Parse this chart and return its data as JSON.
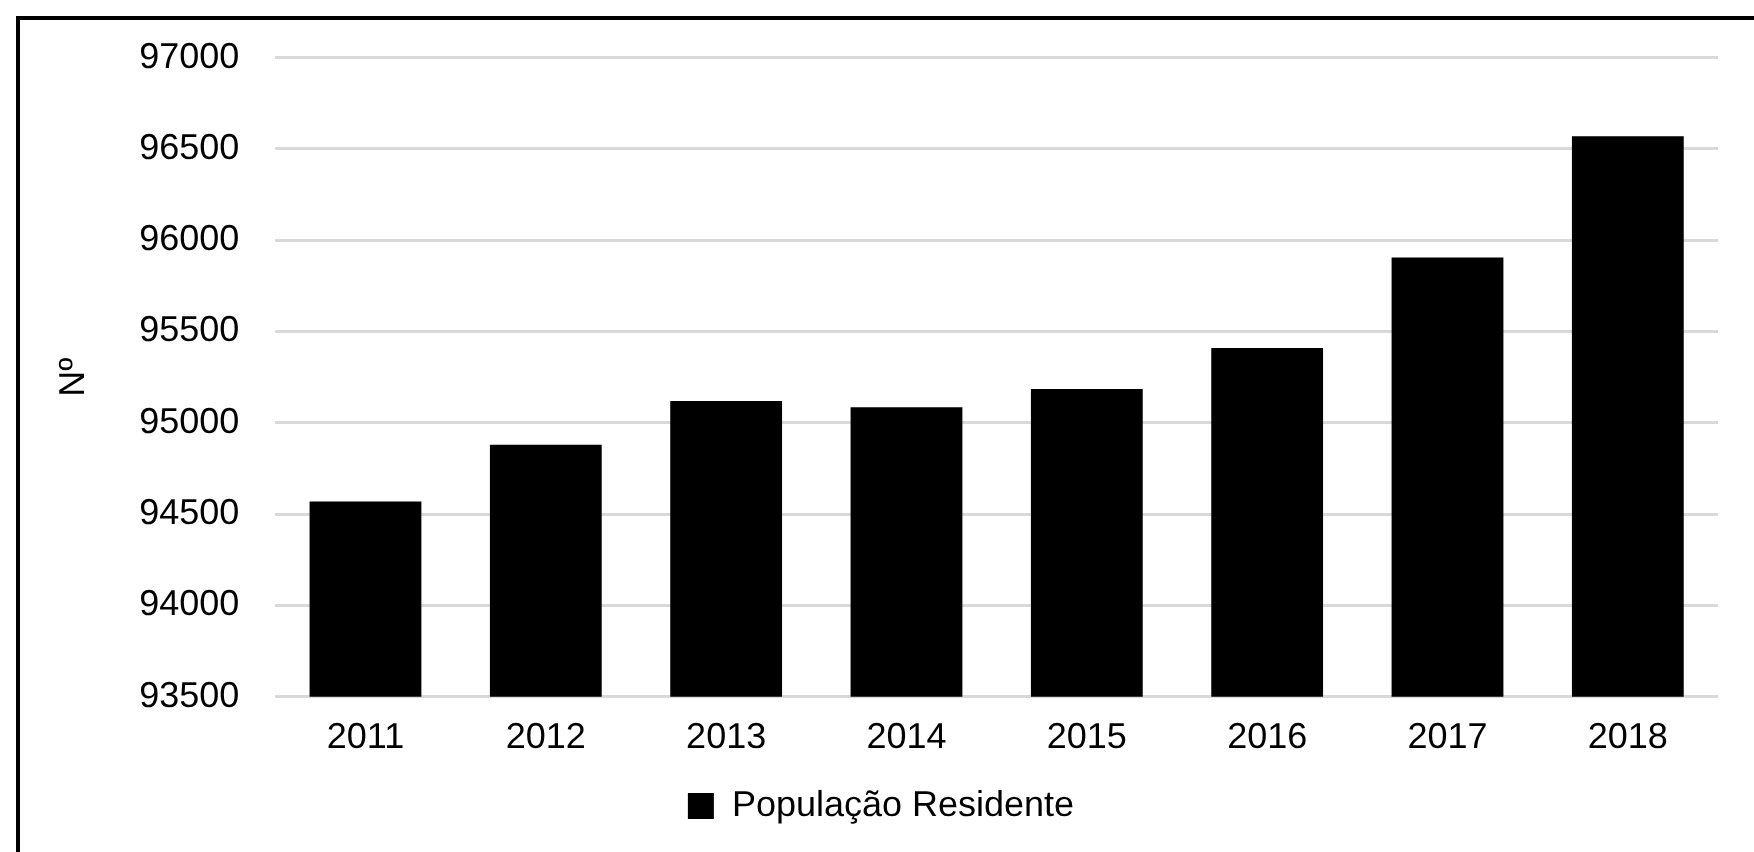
{
  "chart_data": {
    "type": "bar",
    "ylabel": "Nº",
    "categories": [
      "2011",
      "2012",
      "2013",
      "2014",
      "2015",
      "2016",
      "2017",
      "2018"
    ],
    "series": [
      {
        "name": "População Residente",
        "color": "#000000",
        "values": [
          94570,
          94880,
          95120,
          95085,
          95185,
          95410,
          95905,
          96570
        ]
      }
    ],
    "ylim": [
      93500,
      97000
    ],
    "yticks": [
      93500,
      94000,
      94500,
      95000,
      95500,
      96000,
      96500,
      97000
    ],
    "grid": "y",
    "legend": "bottom"
  }
}
